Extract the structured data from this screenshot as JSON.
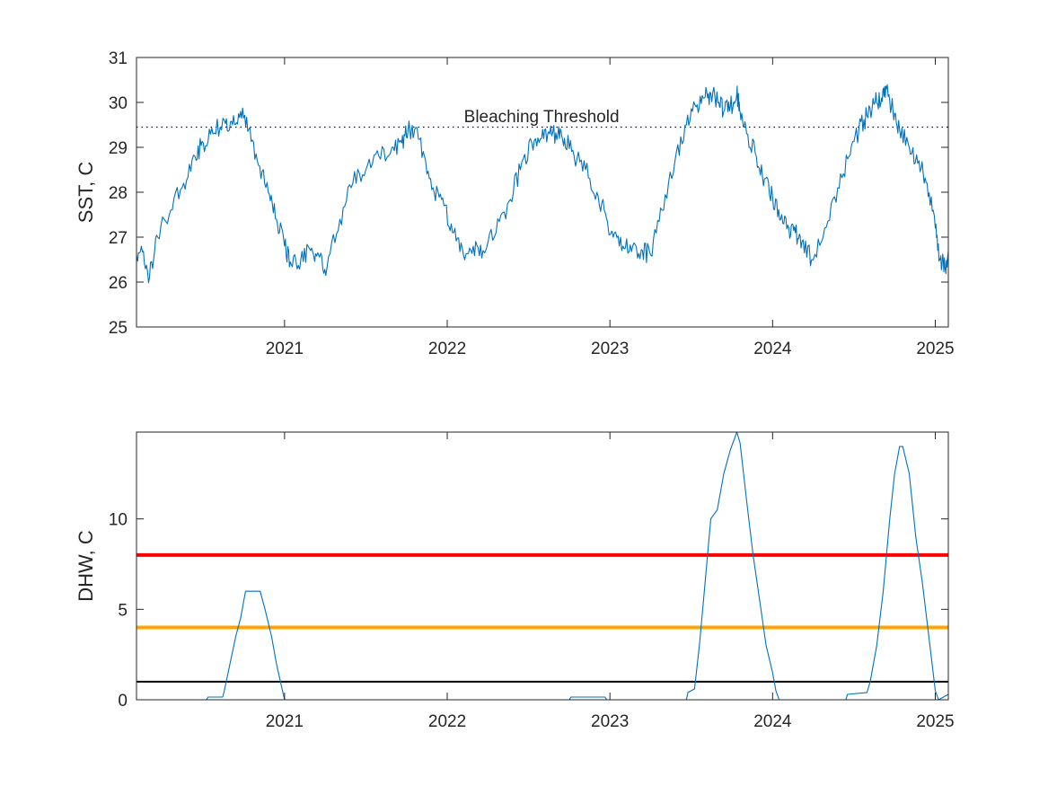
{
  "colors": {
    "series": "#0072bd",
    "threshold_line": "#00008b",
    "alert_level_2": "#ff0000",
    "alert_level_1": "#ffa500",
    "watch": "#000000",
    "axis": "#262626"
  },
  "chart_data": [
    {
      "type": "line",
      "title": "",
      "xlabel": "",
      "ylabel": "SST, C",
      "x_tick_labels": [
        "2021",
        "2022",
        "2023",
        "2024",
        "2025"
      ],
      "x_tick_years": [
        2021,
        2022,
        2023,
        2024,
        2025
      ],
      "xlim": [
        2020.09,
        2025.08
      ],
      "ylim": [
        25,
        31
      ],
      "y_ticks": [
        25,
        26,
        27,
        28,
        29,
        30,
        31
      ],
      "grid": false,
      "annotation": {
        "text": "Bleaching Threshold",
        "x": 2022.58,
        "y": 29.7
      },
      "threshold": 29.45,
      "series": [
        {
          "x": [
            2020.09,
            2020.12,
            2020.17,
            2020.22,
            2020.3,
            2020.38,
            2020.45,
            2020.5,
            2020.56,
            2020.63,
            2020.68,
            2020.73,
            2020.78,
            2020.84,
            2020.9,
            2020.95,
            2021.0,
            2021.04,
            2021.1,
            2021.16,
            2021.21,
            2021.26,
            2021.34,
            2021.42,
            2021.5,
            2021.58,
            2021.66,
            2021.72,
            2021.76,
            2021.8,
            2021.86,
            2021.92,
            2021.98,
            2022.04,
            2022.1,
            2022.16,
            2022.22,
            2022.3,
            2022.38,
            2022.45,
            2022.52,
            2022.58,
            2022.63,
            2022.68,
            2022.72,
            2022.78,
            2022.85,
            2022.92,
            2022.98,
            2023.02,
            2023.08,
            2023.14,
            2023.2,
            2023.25,
            2023.32,
            2023.4,
            2023.47,
            2023.53,
            2023.58,
            2023.62,
            2023.67,
            2023.7,
            2023.74,
            2023.78,
            2023.8,
            2023.84,
            2023.9,
            2023.95,
            2024.0,
            2024.05,
            2024.1,
            2024.14,
            2024.18,
            2024.24,
            2024.32,
            2024.4,
            2024.47,
            2024.53,
            2024.58,
            2024.63,
            2024.67,
            2024.7,
            2024.74,
            2024.78,
            2024.84,
            2024.9,
            2024.95,
            2025.0,
            2025.03,
            2025.06,
            2025.08
          ],
          "y": [
            26.6,
            26.8,
            26.1,
            27.0,
            27.6,
            28.2,
            28.8,
            29.1,
            29.3,
            29.6,
            29.5,
            29.8,
            29.4,
            28.6,
            28.0,
            27.4,
            26.8,
            26.4,
            26.5,
            26.7,
            26.6,
            26.3,
            27.4,
            28.2,
            28.5,
            28.8,
            29.0,
            29.1,
            29.4,
            29.4,
            28.8,
            28.0,
            27.7,
            27.1,
            26.6,
            26.8,
            26.7,
            27.1,
            27.8,
            28.5,
            29.1,
            29.2,
            29.3,
            29.3,
            29.2,
            28.8,
            28.5,
            28.0,
            27.4,
            27.0,
            26.8,
            26.8,
            26.7,
            26.6,
            27.6,
            28.7,
            29.5,
            29.9,
            30.1,
            30.2,
            30.0,
            29.8,
            29.9,
            30.2,
            29.8,
            29.3,
            28.8,
            28.3,
            27.9,
            27.4,
            27.2,
            27.1,
            26.9,
            26.5,
            27.2,
            28.1,
            28.8,
            29.4,
            29.7,
            30.0,
            30.1,
            30.3,
            29.8,
            29.4,
            29.0,
            28.7,
            28.2,
            27.2,
            26.5,
            26.3,
            26.7
          ]
        }
      ]
    },
    {
      "type": "line",
      "title": "",
      "xlabel": "",
      "ylabel": "DHW, C",
      "x_tick_labels": [
        "2021",
        "2022",
        "2023",
        "2024",
        "2025"
      ],
      "x_tick_years": [
        2021,
        2022,
        2023,
        2024,
        2025
      ],
      "xlim": [
        2020.09,
        2025.08
      ],
      "ylim": [
        0,
        14.8
      ],
      "y_ticks": [
        0,
        5,
        10
      ],
      "grid": false,
      "reference_lines": [
        {
          "y": 8,
          "color_key": "alert_level_2"
        },
        {
          "y": 4,
          "color_key": "alert_level_1"
        },
        {
          "y": 1,
          "color_key": "watch"
        }
      ],
      "series": [
        {
          "x": [
            2020.09,
            2020.52,
            2020.53,
            2020.62,
            2020.63,
            2020.66,
            2020.7,
            2020.73,
            2020.76,
            2020.8,
            2020.85,
            2020.88,
            2020.92,
            2020.95,
            2020.98,
            2021.0,
            2021.02,
            2022.75,
            2022.76,
            2022.97,
            2022.98,
            2023.47,
            2023.48,
            2023.52,
            2023.55,
            2023.58,
            2023.62,
            2023.66,
            2023.7,
            2023.74,
            2023.78,
            2023.8,
            2023.84,
            2023.88,
            2023.92,
            2023.96,
            2024.0,
            2024.02,
            2024.04,
            2024.06,
            2024.45,
            2024.46,
            2024.58,
            2024.6,
            2024.64,
            2024.68,
            2024.72,
            2024.75,
            2024.78,
            2024.8,
            2024.84,
            2024.88,
            2024.92,
            2024.96,
            2025.0,
            2025.02,
            2025.08
          ],
          "y": [
            0,
            0,
            0.15,
            0.15,
            0.5,
            1.8,
            3.5,
            4.5,
            6.0,
            6.0,
            6.0,
            5.0,
            3.5,
            2.0,
            0.8,
            0,
            0,
            0,
            0.15,
            0.15,
            0,
            0,
            0.4,
            0.6,
            3.0,
            6.0,
            10.0,
            10.5,
            12.5,
            13.8,
            14.8,
            14.2,
            11.0,
            8.0,
            5.5,
            3.0,
            1.5,
            0.5,
            0,
            0,
            0,
            0.3,
            0.4,
            1.0,
            3.0,
            6.0,
            10.0,
            12.5,
            14.0,
            14.0,
            12.5,
            9.0,
            6.5,
            3.5,
            0.5,
            0,
            0.3
          ]
        }
      ]
    }
  ]
}
